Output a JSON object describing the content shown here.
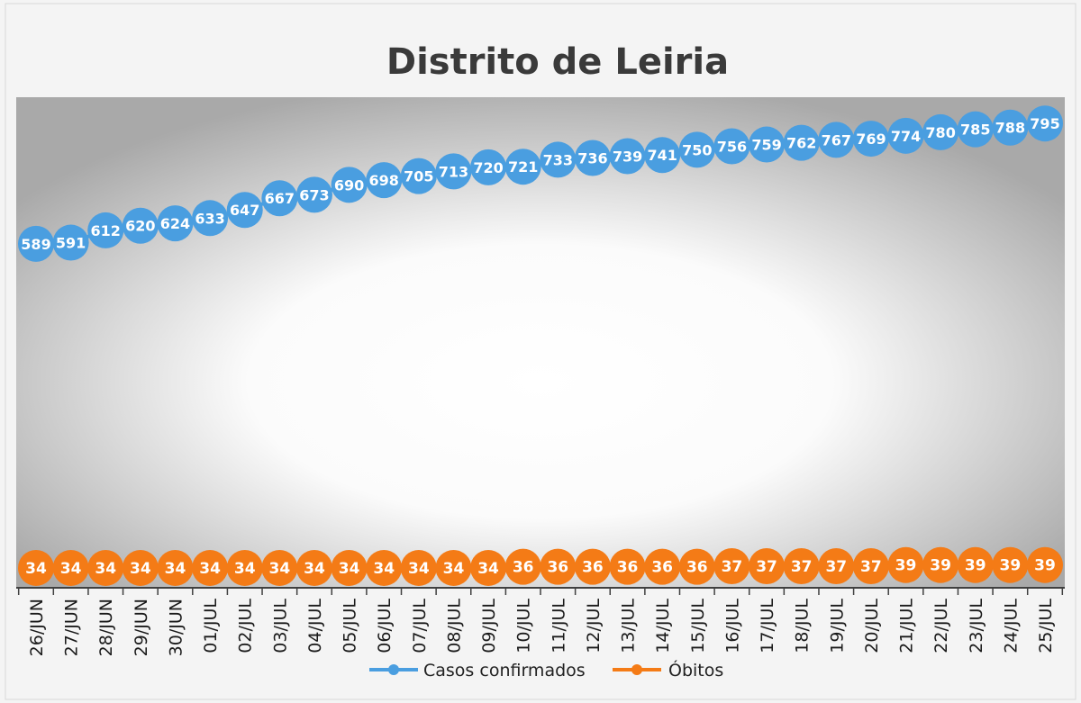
{
  "chart_data": {
    "type": "line",
    "title": "Distrito de Leiria",
    "categories": [
      "26/JUN",
      "27/JUN",
      "28/JUN",
      "29/JUN",
      "30/JUN",
      "01/JUL",
      "02/JUL",
      "03/JUL",
      "04/JUL",
      "05/JUL",
      "06/JUL",
      "07/JUL",
      "08/JUL",
      "09/JUL",
      "10/JUL",
      "11/JUL",
      "12/JUL",
      "13/JUL",
      "14/JUL",
      "15/JUL",
      "16/JUL",
      "17/JUL",
      "18/JUL",
      "19/JUL",
      "20/JUL",
      "21/JUL",
      "22/JUL",
      "23/JUL",
      "24/JUL",
      "25/JUL"
    ],
    "series": [
      {
        "name": "Casos confirmados",
        "color": "#4a9ee0",
        "values": [
          589,
          591,
          612,
          620,
          624,
          633,
          647,
          667,
          673,
          690,
          698,
          705,
          713,
          720,
          721,
          733,
          736,
          739,
          741,
          750,
          756,
          759,
          762,
          767,
          769,
          774,
          780,
          785,
          788,
          795
        ]
      },
      {
        "name": "Óbitos",
        "color": "#f47b16",
        "values": [
          34,
          34,
          34,
          34,
          34,
          34,
          34,
          34,
          34,
          34,
          34,
          34,
          34,
          34,
          36,
          36,
          36,
          36,
          36,
          36,
          37,
          37,
          37,
          37,
          37,
          39,
          39,
          39,
          39,
          39
        ]
      }
    ],
    "ylim": [
      0,
      840
    ],
    "legend": "bottom",
    "grid": false
  }
}
